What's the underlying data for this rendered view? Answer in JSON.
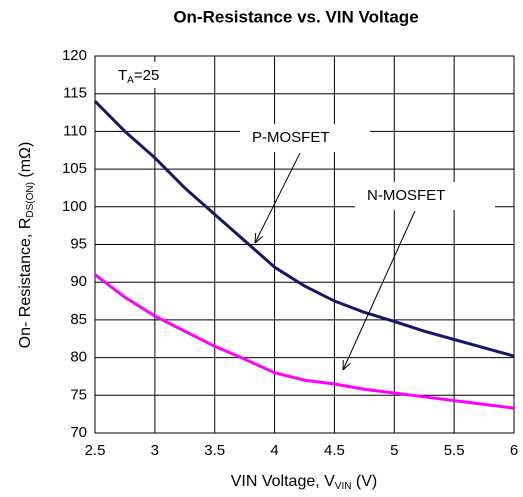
{
  "chart_data": {
    "type": "line",
    "title": "On-Resistance vs. VIN Voltage",
    "xlabel": {
      "text": "VIN Voltage, V",
      "sub": "VIN",
      "suffix": " (V)"
    },
    "ylabel": {
      "text": "On- Resistance, R",
      "sub": "DS(ON)",
      "suffix": " (mΩ)"
    },
    "annotations": [
      {
        "text": "T",
        "sub": "A",
        "suffix": "=25"
      },
      {
        "text": "P-MOSFET"
      },
      {
        "text": "N-MOSFET"
      }
    ],
    "x": [
      2.5,
      2.75,
      3,
      3.25,
      3.5,
      3.75,
      4,
      4.25,
      4.5,
      4.75,
      5,
      5.25,
      5.5,
      5.75,
      6
    ],
    "series": [
      {
        "name": "P-MOSFET",
        "color": "#16166a",
        "values": [
          114,
          110,
          106.5,
          102.5,
          99,
          95.5,
          92,
          89.5,
          87.5,
          86,
          84.8,
          83.5,
          82.4,
          81.3,
          80.2
        ]
      },
      {
        "name": "N-MOSFET",
        "color": "#ff00ff",
        "values": [
          91,
          88,
          85.5,
          83.5,
          81.5,
          79.8,
          78,
          77,
          76.5,
          75.8,
          75.3,
          74.8,
          74.3,
          73.8,
          73.3
        ]
      }
    ],
    "xlim": [
      2.5,
      6
    ],
    "xticks": [
      2.5,
      3,
      3.5,
      4,
      4.5,
      5,
      5.5,
      6
    ],
    "ylim": [
      70,
      120
    ],
    "yticks": [
      70,
      75,
      80,
      85,
      90,
      95,
      100,
      105,
      110,
      115,
      120
    ],
    "grid": true
  }
}
